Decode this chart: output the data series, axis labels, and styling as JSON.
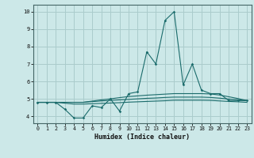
{
  "title": "",
  "xlabel": "Humidex (Indice chaleur)",
  "ylabel": "",
  "bg_color": "#cce8e8",
  "grid_color": "#aacccc",
  "line_color": "#1a6b6b",
  "x_ticks": [
    0,
    1,
    2,
    3,
    4,
    5,
    6,
    7,
    8,
    9,
    10,
    11,
    12,
    13,
    14,
    15,
    16,
    17,
    18,
    19,
    20,
    21,
    22,
    23
  ],
  "y_ticks": [
    4,
    5,
    6,
    7,
    8,
    9,
    10
  ],
  "ylim": [
    3.6,
    10.4
  ],
  "xlim": [
    -0.5,
    23.5
  ],
  "series": [
    [
      4.8,
      4.8,
      4.8,
      4.4,
      3.9,
      3.9,
      4.6,
      4.5,
      5.0,
      4.3,
      5.3,
      5.4,
      7.7,
      7.0,
      9.5,
      10.0,
      5.8,
      7.0,
      5.5,
      5.3,
      5.3,
      4.9,
      4.9,
      4.9
    ],
    [
      4.8,
      4.8,
      4.8,
      4.8,
      4.8,
      4.8,
      4.87,
      4.94,
      5.0,
      5.07,
      5.13,
      5.17,
      5.21,
      5.24,
      5.27,
      5.3,
      5.3,
      5.3,
      5.3,
      5.28,
      5.22,
      5.12,
      5.02,
      4.9
    ],
    [
      4.8,
      4.8,
      4.8,
      4.8,
      4.8,
      4.8,
      4.84,
      4.88,
      4.91,
      4.94,
      4.97,
      5.0,
      5.03,
      5.05,
      5.08,
      5.1,
      5.1,
      5.1,
      5.1,
      5.08,
      5.04,
      4.99,
      4.95,
      4.9
    ],
    [
      4.8,
      4.8,
      4.8,
      4.75,
      4.7,
      4.7,
      4.72,
      4.74,
      4.76,
      4.78,
      4.81,
      4.83,
      4.85,
      4.87,
      4.89,
      4.92,
      4.92,
      4.92,
      4.92,
      4.91,
      4.88,
      4.85,
      4.83,
      4.8
    ]
  ]
}
